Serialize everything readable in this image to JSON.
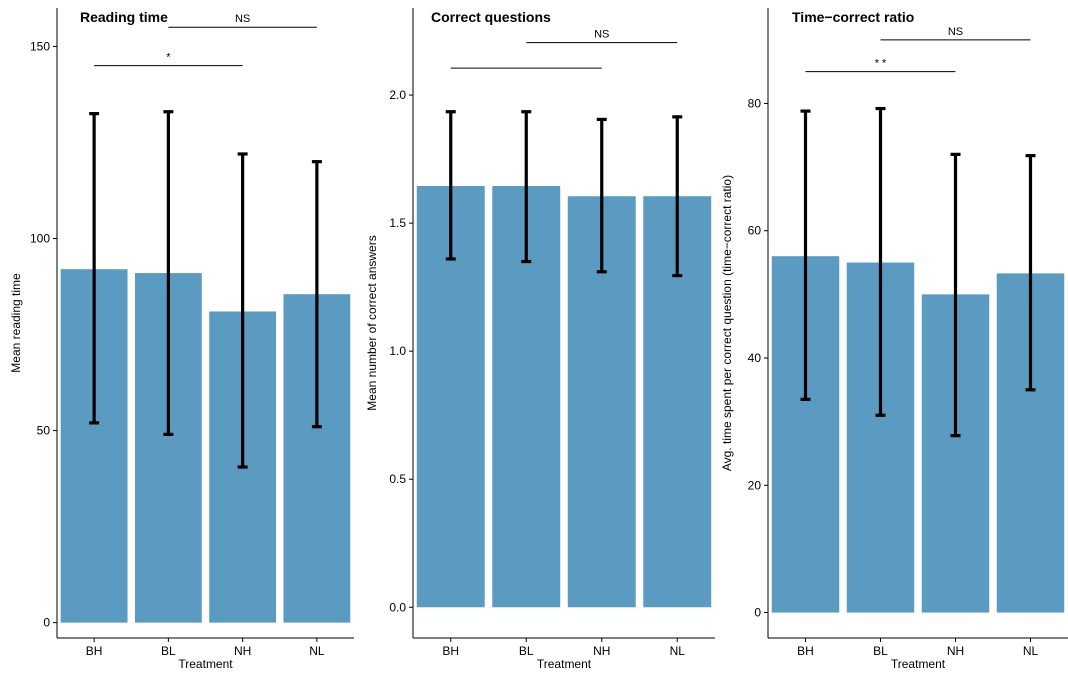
{
  "chart_data": [
    {
      "type": "bar",
      "title": "Reading time",
      "xlabel": "Treatment",
      "ylabel": "Mean reading time",
      "categories": [
        "BH",
        "BL",
        "NH",
        "NL"
      ],
      "values": [
        92,
        91,
        81,
        85.5
      ],
      "error_low": [
        52,
        49,
        40.5,
        51
      ],
      "error_high": [
        132.5,
        133,
        122,
        120
      ],
      "ylim": [
        -4,
        160
      ],
      "yticks": [
        0,
        50,
        100,
        150
      ],
      "bar_color": "#5b9bc1",
      "significance": [
        {
          "from": 0,
          "to": 2,
          "level": 145,
          "label": "*"
        },
        {
          "from": 1,
          "to": 3,
          "level": 155,
          "label": "NS"
        }
      ]
    },
    {
      "type": "bar",
      "title": "Correct questions",
      "xlabel": "Treatment",
      "ylabel": "Mean number of correct answers",
      "categories": [
        "BH",
        "BL",
        "NH",
        "NL"
      ],
      "values": [
        1.645,
        1.645,
        1.605,
        1.605
      ],
      "error_low": [
        1.36,
        1.35,
        1.31,
        1.295
      ],
      "error_high": [
        1.935,
        1.935,
        1.905,
        1.915
      ],
      "ylim": [
        -0.12,
        2.34
      ],
      "yticks": [
        0.0,
        0.5,
        1.0,
        1.5,
        2.0
      ],
      "ytick_labels": [
        "0.0",
        "0.5",
        "1.0",
        "1.5",
        "2.0"
      ],
      "bar_color": "#5b9bc1",
      "significance": [
        {
          "from": 0,
          "to": 2,
          "level": 2.105,
          "label": ""
        },
        {
          "from": 1,
          "to": 3,
          "level": 2.205,
          "label": "NS"
        }
      ]
    },
    {
      "type": "bar",
      "title": "Time−correct ratio",
      "xlabel": "Treatment",
      "ylabel": "Avg. time spent per correct question (time−correct ratio)",
      "categories": [
        "BH",
        "BL",
        "NH",
        "NL"
      ],
      "values": [
        56,
        55,
        50,
        53.3
      ],
      "error_low": [
        33.5,
        31,
        27.8,
        35
      ],
      "error_high": [
        78.8,
        79.2,
        72,
        71.8
      ],
      "ylim": [
        -4,
        95
      ],
      "yticks": [
        0,
        20,
        40,
        60,
        80
      ],
      "bar_color": "#5b9bc1",
      "significance": [
        {
          "from": 0,
          "to": 2,
          "level": 85,
          "label": "* *"
        },
        {
          "from": 1,
          "to": 3,
          "level": 90,
          "label": "NS"
        }
      ]
    }
  ]
}
